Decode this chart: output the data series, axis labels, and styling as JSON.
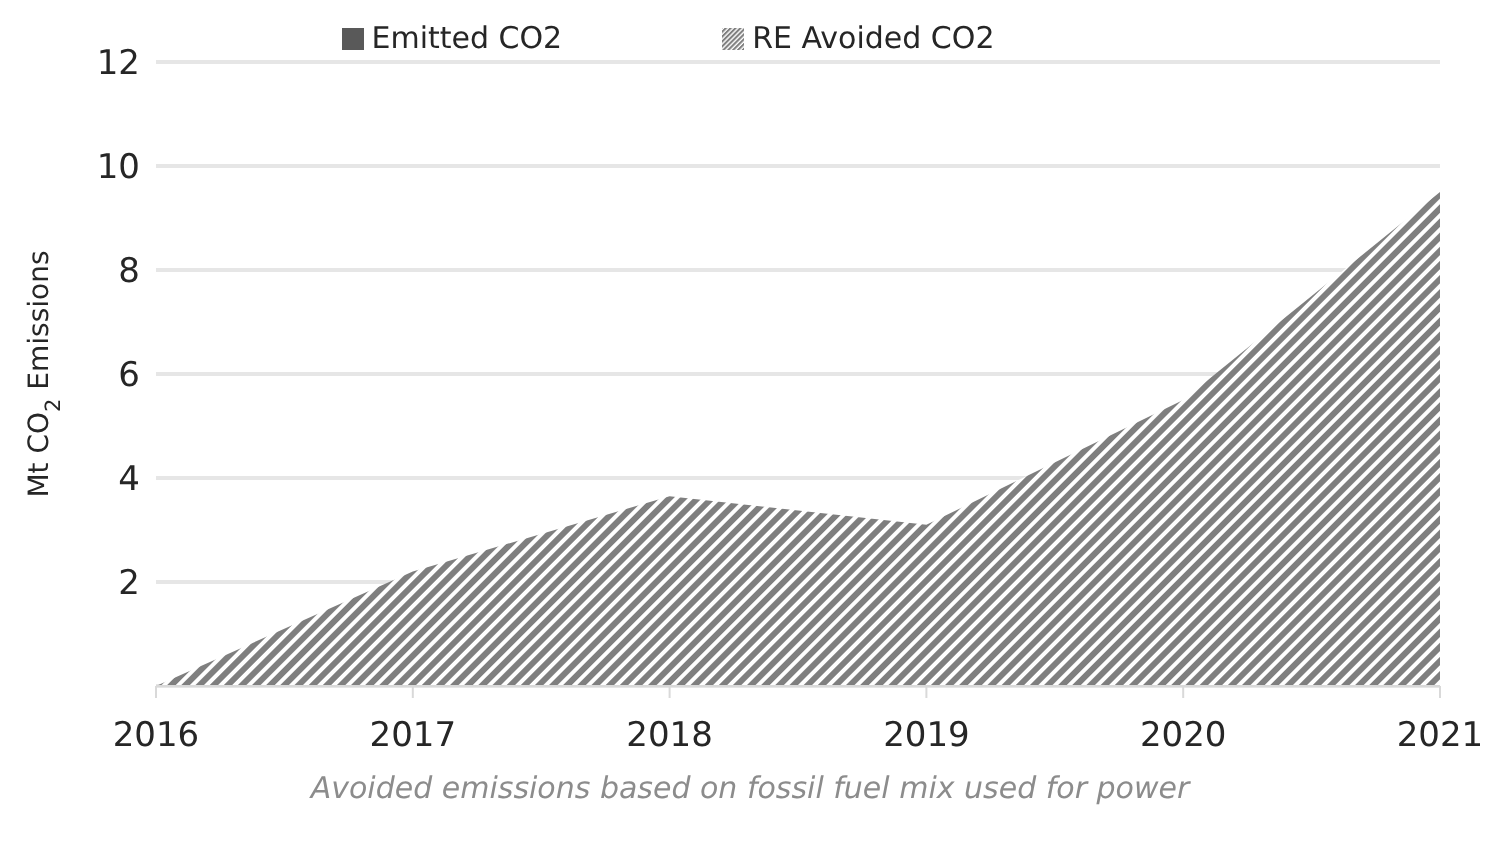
{
  "chart_data": {
    "type": "area",
    "ylabel": "Mt CO$_{2}$ Emissions",
    "x": [
      2016,
      2017,
      2018,
      2019,
      2020,
      2021
    ],
    "xlim": [
      2016,
      2021
    ],
    "xticks": [
      2016,
      2017,
      2018,
      2019,
      2020,
      2021
    ],
    "ylim": [
      0,
      12
    ],
    "yticks": [
      2,
      4,
      6,
      8,
      10,
      12
    ],
    "grid": "y",
    "legend": "top",
    "annotations": [
      "Avoided emissions based on fossil fuel mix used for power"
    ],
    "series": [
      {
        "name": "Emitted CO2",
        "color": "#595959",
        "values": [
          null,
          null,
          null,
          null,
          null,
          null
        ]
      },
      {
        "name": "RE Avoided CO2",
        "color": "#7f7f7f",
        "values": [
          0,
          2.2,
          3.65,
          3.1,
          5.5,
          9.5
        ]
      }
    ]
  }
}
